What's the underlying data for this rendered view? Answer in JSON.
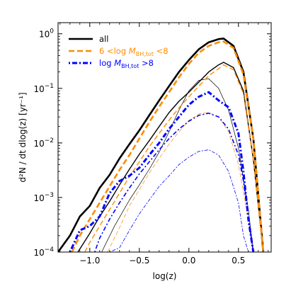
{
  "chart_data": {
    "type": "line",
    "xlabel": "log(z)",
    "ylabel": "d²N / dt dlog(z) [yr⁻¹]",
    "xlim": [
      -1.32,
      0.83
    ],
    "ylim": [
      0.0001,
      1.6
    ],
    "yscale": "log",
    "xticks": [
      -1.0,
      -0.5,
      0.0,
      0.5
    ],
    "xtick_labels": [
      "−1.0",
      "−0.5",
      "0.0",
      "0.5"
    ],
    "yticks": [
      0.0001,
      0.001,
      0.01,
      0.1,
      1
    ],
    "ytick_labels": [
      {
        "base": "10",
        "exp": "−4"
      },
      {
        "base": "10",
        "exp": "−3"
      },
      {
        "base": "10",
        "exp": "−2"
      },
      {
        "base": "10",
        "exp": "−1"
      },
      {
        "base": "10",
        "exp": "0"
      }
    ],
    "legend": {
      "position": "top-left",
      "entries": [
        {
          "series": "all",
          "text": "all",
          "color": "#000000"
        },
        {
          "series": "mid",
          "text_pre": "6 <log ",
          "text_mid": "M",
          "text_sub": "BH,tot",
          "text_post": " <8",
          "color": "#ff8c00"
        },
        {
          "series": "high",
          "text_pre": "log ",
          "text_mid": "M",
          "text_sub": "BH,tot",
          "text_post": " >8",
          "color": "#0000ff"
        }
      ]
    },
    "series": [
      {
        "id": "all",
        "variant": "thick",
        "x": [
          -1.32,
          -1.2,
          -1.1,
          -1.0,
          -0.9,
          -0.8,
          -0.7,
          -0.6,
          -0.5,
          -0.4,
          -0.3,
          -0.2,
          -0.1,
          0.0,
          0.1,
          0.2,
          0.3,
          0.35,
          0.45,
          0.55,
          0.65,
          0.75
        ],
        "y": [
          0.0001,
          0.0002,
          0.00045,
          0.0007,
          0.0015,
          0.0026,
          0.0052,
          0.0095,
          0.017,
          0.032,
          0.06,
          0.11,
          0.2,
          0.33,
          0.52,
          0.7,
          0.8,
          0.82,
          0.6,
          0.2,
          0.012,
          0.0001
        ]
      },
      {
        "id": "all",
        "variant": "medium",
        "x": [
          -1.12,
          -1.0,
          -0.9,
          -0.8,
          -0.7,
          -0.6,
          -0.5,
          -0.4,
          -0.3,
          -0.2,
          -0.1,
          0.0,
          0.1,
          0.2,
          0.3,
          0.35,
          0.45,
          0.55,
          0.65,
          0.75
        ],
        "y": [
          0.0001,
          0.00022,
          0.00045,
          0.00085,
          0.0017,
          0.0033,
          0.0062,
          0.011,
          0.02,
          0.036,
          0.058,
          0.085,
          0.13,
          0.2,
          0.27,
          0.3,
          0.24,
          0.09,
          0.005,
          0.0001
        ]
      },
      {
        "id": "all",
        "variant": "thin",
        "x": [
          -0.88,
          -0.75,
          -0.6,
          -0.5,
          -0.4,
          -0.3,
          -0.2,
          -0.1,
          0.0,
          0.1,
          0.2,
          0.3,
          0.4,
          0.5,
          0.6,
          0.65
        ],
        "y": [
          0.0001,
          0.0003,
          0.0009,
          0.0017,
          0.0033,
          0.0068,
          0.016,
          0.04,
          0.09,
          0.14,
          0.15,
          0.1,
          0.04,
          0.008,
          0.0006,
          0.0001
        ]
      },
      {
        "id": "mid",
        "variant": "thick",
        "x": [
          -1.18,
          -1.1,
          -1.0,
          -0.9,
          -0.8,
          -0.7,
          -0.6,
          -0.5,
          -0.4,
          -0.3,
          -0.2,
          -0.1,
          0.0,
          0.1,
          0.2,
          0.3,
          0.35,
          0.45,
          0.55,
          0.65,
          0.75
        ],
        "y": [
          0.0001,
          0.0002,
          0.0004,
          0.0008,
          0.0016,
          0.0032,
          0.006,
          0.012,
          0.024,
          0.046,
          0.085,
          0.16,
          0.28,
          0.45,
          0.6,
          0.7,
          0.72,
          0.55,
          0.18,
          0.012,
          0.0001
        ]
      },
      {
        "id": "mid",
        "variant": "medium",
        "x": [
          -1.05,
          -1.0,
          -0.9,
          -0.8,
          -0.7,
          -0.6,
          -0.5,
          -0.4,
          -0.3,
          -0.2,
          -0.1,
          0.0,
          0.1,
          0.2,
          0.3,
          0.35,
          0.45,
          0.55,
          0.65,
          0.75
        ],
        "y": [
          0.0001,
          0.00015,
          0.0003,
          0.0006,
          0.0012,
          0.0024,
          0.0045,
          0.0085,
          0.015,
          0.026,
          0.044,
          0.07,
          0.11,
          0.17,
          0.23,
          0.27,
          0.22,
          0.08,
          0.005,
          0.0001
        ]
      },
      {
        "id": "mid",
        "variant": "thin",
        "x": [
          -0.82,
          -0.7,
          -0.6,
          -0.5,
          -0.4,
          -0.3,
          -0.2,
          -0.1,
          0.0,
          0.1,
          0.2,
          0.3,
          0.4,
          0.5,
          0.6,
          0.65
        ],
        "y": [
          0.0001,
          0.00028,
          0.0007,
          0.0014,
          0.0028,
          0.0052,
          0.0095,
          0.016,
          0.026,
          0.034,
          0.036,
          0.03,
          0.016,
          0.004,
          0.0004,
          0.0001
        ]
      },
      {
        "id": "high",
        "variant": "thick",
        "x": [
          -1.2,
          -1.1,
          -1.0,
          -0.9,
          -0.8,
          -0.7,
          -0.6,
          -0.5,
          -0.4,
          -0.3,
          -0.2,
          -0.1,
          0.0,
          0.1,
          0.2,
          0.3,
          0.4,
          0.5,
          0.55,
          0.6,
          0.65
        ],
        "y": [
          0.0001,
          0.00025,
          0.0003,
          0.00045,
          0.0012,
          0.002,
          0.0025,
          0.0035,
          0.006,
          0.01,
          0.018,
          0.03,
          0.05,
          0.07,
          0.085,
          0.06,
          0.045,
          0.015,
          0.003,
          0.0004,
          0.0001
        ]
      },
      {
        "id": "high",
        "variant": "medium",
        "x": [
          -0.95,
          -0.9,
          -0.8,
          -0.7,
          -0.6,
          -0.5,
          -0.4,
          -0.3,
          -0.2,
          -0.1,
          0.0,
          0.1,
          0.2,
          0.3,
          0.4,
          0.5,
          0.55,
          0.6,
          0.65
        ],
        "y": [
          0.0001,
          0.00018,
          0.0004,
          0.0008,
          0.0015,
          0.0027,
          0.0045,
          0.0075,
          0.012,
          0.018,
          0.025,
          0.032,
          0.035,
          0.03,
          0.018,
          0.006,
          0.002,
          0.0004,
          0.0001
        ]
      },
      {
        "id": "high",
        "variant": "thin",
        "x": [
          -0.8,
          -0.7,
          -0.6,
          -0.5,
          -0.4,
          -0.3,
          -0.2,
          -0.1,
          0.0,
          0.1,
          0.2,
          0.3,
          0.4,
          0.5,
          0.55,
          0.6
        ],
        "y": [
          0.0001,
          0.00012,
          0.00025,
          0.0005,
          0.0009,
          0.0016,
          0.0025,
          0.004,
          0.0055,
          0.007,
          0.0075,
          0.006,
          0.003,
          0.0008,
          0.0002,
          0.0001
        ]
      }
    ],
    "colors": {
      "all": "#000000",
      "mid": "#ff8c00",
      "high": "#0000ff"
    },
    "grid": false
  }
}
